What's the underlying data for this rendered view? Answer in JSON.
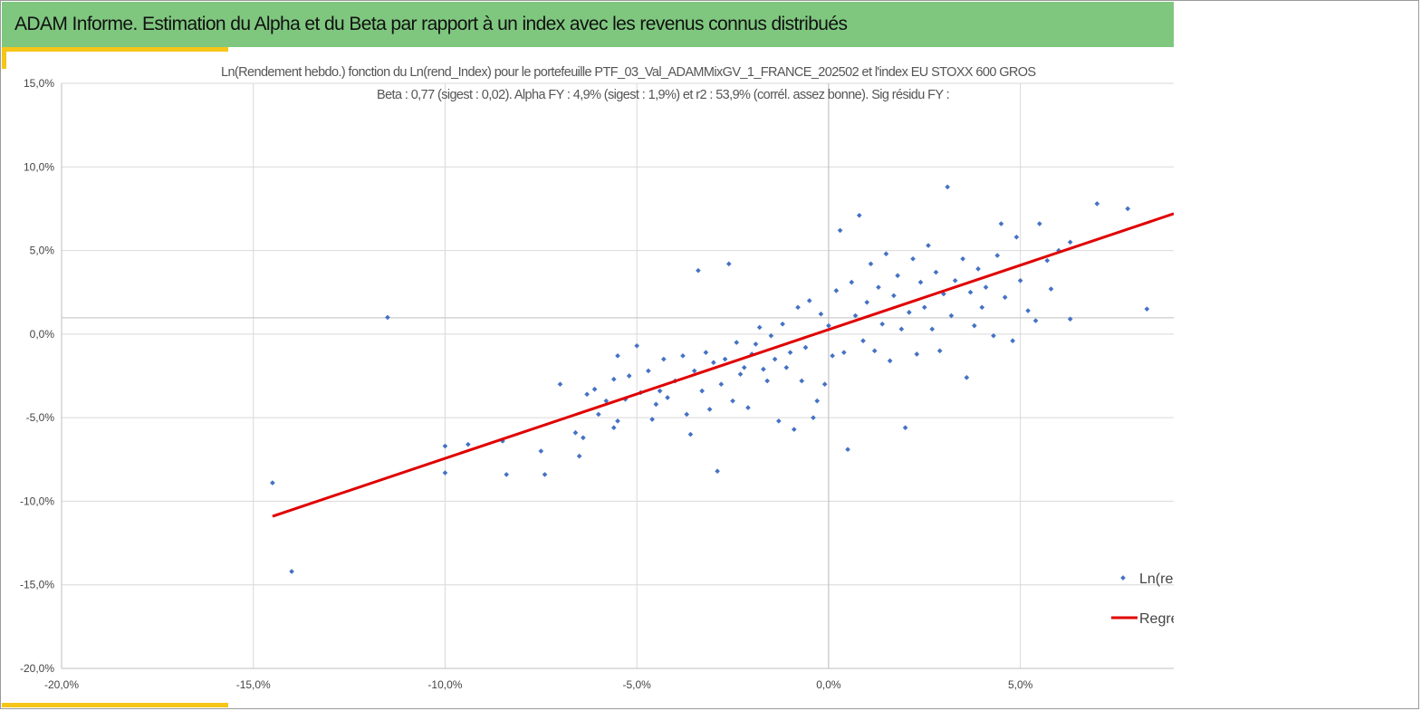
{
  "banner": {
    "title": "ADAM Informe. Estimation du Alpha et du Beta par rapport à un index avec les revenus connus distribués"
  },
  "colors": {
    "banner": "#7fc77f",
    "accent": "#f5c518",
    "points": "#4472c4",
    "regression": "#e00000",
    "grid": "#d9d9d9"
  },
  "chart_data": {
    "type": "scatter",
    "title": "Ln(Rendement hebdo.) fonction du Ln(rend_Index) pour le portefeuille PTF_03_Val_ADAMMixGV_1_FRANCE_202502 et l'index EU STOXX 600 GROS",
    "subtitle": "Beta : 0,77 (sigest : 0,02). Alpha FY : 4,9% (sigest : 1,9%) et r2 : 53,9% (corrél. assez bonne). Sig résidu FY :",
    "xlabel": "",
    "ylabel": "",
    "xlim": [
      -0.2,
      0.09
    ],
    "ylim": [
      -0.2,
      0.15
    ],
    "x_ticks": [
      -0.2,
      -0.15,
      -0.1,
      -0.05,
      0.0,
      0.05
    ],
    "x_tick_labels": [
      "-20,0%",
      "-15,0%",
      "-10,0%",
      "-5,0%",
      "0,0%",
      "5,0%"
    ],
    "y_ticks": [
      0.15,
      0.1,
      0.05,
      0.0,
      -0.05,
      -0.1,
      -0.15,
      -0.2
    ],
    "y_tick_labels": [
      "15,0%",
      "10,0%",
      "5,0%",
      "0,0%",
      "-5,0%",
      "-10,0%",
      "-15,0%",
      "-20,0%"
    ],
    "grid": true,
    "legend_position": "bottom-right",
    "series": [
      {
        "name": "Ln(re",
        "kind": "scatter",
        "points": [
          [
            -0.145,
            -0.089
          ],
          [
            -0.14,
            -0.142
          ],
          [
            -0.115,
            0.01
          ],
          [
            -0.1,
            -0.067
          ],
          [
            -0.1,
            -0.083
          ],
          [
            -0.094,
            -0.066
          ],
          [
            -0.085,
            -0.064
          ],
          [
            -0.084,
            -0.084
          ],
          [
            -0.075,
            -0.07
          ],
          [
            -0.074,
            -0.084
          ],
          [
            -0.07,
            -0.03
          ],
          [
            -0.066,
            -0.059
          ],
          [
            -0.065,
            -0.073
          ],
          [
            -0.064,
            -0.062
          ],
          [
            -0.063,
            -0.036
          ],
          [
            -0.061,
            -0.033
          ],
          [
            -0.06,
            -0.048
          ],
          [
            -0.058,
            -0.04
          ],
          [
            -0.056,
            -0.056
          ],
          [
            -0.056,
            -0.027
          ],
          [
            -0.055,
            -0.052
          ],
          [
            -0.055,
            -0.013
          ],
          [
            -0.053,
            -0.039
          ],
          [
            -0.052,
            -0.025
          ],
          [
            -0.05,
            -0.007
          ],
          [
            -0.049,
            -0.035
          ],
          [
            -0.047,
            -0.022
          ],
          [
            -0.046,
            -0.051
          ],
          [
            -0.045,
            -0.042
          ],
          [
            -0.044,
            -0.034
          ],
          [
            -0.043,
            -0.015
          ],
          [
            -0.042,
            -0.038
          ],
          [
            -0.04,
            -0.028
          ],
          [
            -0.038,
            -0.013
          ],
          [
            -0.037,
            -0.048
          ],
          [
            -0.036,
            -0.06
          ],
          [
            -0.035,
            -0.022
          ],
          [
            -0.034,
            0.038
          ],
          [
            -0.033,
            -0.034
          ],
          [
            -0.032,
            -0.011
          ],
          [
            -0.031,
            -0.045
          ],
          [
            -0.03,
            -0.017
          ],
          [
            -0.029,
            -0.082
          ],
          [
            -0.028,
            -0.03
          ],
          [
            -0.027,
            -0.015
          ],
          [
            -0.026,
            0.042
          ],
          [
            -0.025,
            -0.04
          ],
          [
            -0.024,
            -0.005
          ],
          [
            -0.023,
            -0.024
          ],
          [
            -0.022,
            -0.02
          ],
          [
            -0.021,
            -0.044
          ],
          [
            -0.02,
            -0.012
          ],
          [
            -0.019,
            -0.006
          ],
          [
            -0.018,
            0.004
          ],
          [
            -0.017,
            -0.021
          ],
          [
            -0.016,
            -0.028
          ],
          [
            -0.015,
            -0.001
          ],
          [
            -0.014,
            -0.015
          ],
          [
            -0.013,
            -0.052
          ],
          [
            -0.012,
            0.006
          ],
          [
            -0.011,
            -0.02
          ],
          [
            -0.01,
            -0.011
          ],
          [
            -0.009,
            -0.057
          ],
          [
            -0.008,
            0.016
          ],
          [
            -0.007,
            -0.028
          ],
          [
            -0.006,
            -0.008
          ],
          [
            -0.005,
            0.02
          ],
          [
            -0.004,
            -0.05
          ],
          [
            -0.003,
            -0.04
          ],
          [
            -0.002,
            0.012
          ],
          [
            -0.001,
            -0.03
          ],
          [
            0.0,
            0.005
          ],
          [
            0.001,
            -0.013
          ],
          [
            0.002,
            0.026
          ],
          [
            0.003,
            0.062
          ],
          [
            0.004,
            -0.011
          ],
          [
            0.005,
            -0.069
          ],
          [
            0.006,
            0.031
          ],
          [
            0.007,
            0.011
          ],
          [
            0.008,
            0.071
          ],
          [
            0.009,
            -0.004
          ],
          [
            0.01,
            0.019
          ],
          [
            0.011,
            0.042
          ],
          [
            0.012,
            -0.01
          ],
          [
            0.013,
            0.028
          ],
          [
            0.014,
            0.006
          ],
          [
            0.015,
            0.048
          ],
          [
            0.016,
            -0.016
          ],
          [
            0.017,
            0.023
          ],
          [
            0.018,
            0.035
          ],
          [
            0.019,
            0.003
          ],
          [
            0.02,
            -0.056
          ],
          [
            0.021,
            0.013
          ],
          [
            0.022,
            0.045
          ],
          [
            0.023,
            -0.012
          ],
          [
            0.024,
            0.031
          ],
          [
            0.025,
            0.016
          ],
          [
            0.026,
            0.053
          ],
          [
            0.027,
            0.003
          ],
          [
            0.028,
            0.037
          ],
          [
            0.029,
            -0.01
          ],
          [
            0.03,
            0.024
          ],
          [
            0.031,
            0.088
          ],
          [
            0.032,
            0.011
          ],
          [
            0.033,
            0.032
          ],
          [
            0.035,
            0.045
          ],
          [
            0.036,
            -0.026
          ],
          [
            0.037,
            0.025
          ],
          [
            0.038,
            0.005
          ],
          [
            0.039,
            0.039
          ],
          [
            0.04,
            0.016
          ],
          [
            0.041,
            0.028
          ],
          [
            0.043,
            -0.001
          ],
          [
            0.044,
            0.047
          ],
          [
            0.045,
            0.066
          ],
          [
            0.046,
            0.022
          ],
          [
            0.048,
            -0.004
          ],
          [
            0.049,
            0.058
          ],
          [
            0.05,
            0.032
          ],
          [
            0.052,
            0.014
          ],
          [
            0.054,
            0.008
          ],
          [
            0.055,
            0.066
          ],
          [
            0.057,
            0.044
          ],
          [
            0.058,
            0.027
          ],
          [
            0.06,
            0.05
          ],
          [
            0.063,
            0.055
          ],
          [
            0.063,
            0.009
          ],
          [
            0.07,
            0.078
          ],
          [
            0.078,
            0.075
          ],
          [
            0.083,
            0.015
          ]
        ]
      },
      {
        "name": "Regre",
        "kind": "line",
        "x": [
          -0.145,
          0.09
        ],
        "y": [
          -0.109,
          0.072
        ]
      }
    ]
  }
}
